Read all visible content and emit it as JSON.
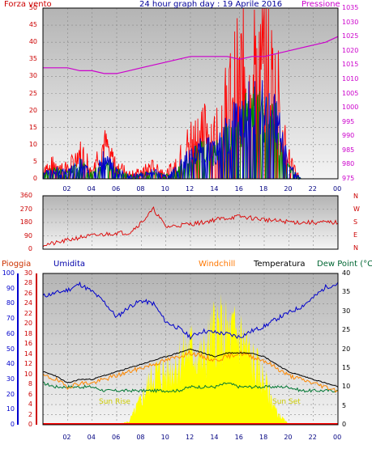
{
  "title": "24 hour graph day : 19 Aprile 2016",
  "header": {
    "left": "Forza vento",
    "right": "Pressione"
  },
  "x_ticks": [
    "02",
    "04",
    "06",
    "08",
    "10",
    "12",
    "14",
    "16",
    "18",
    "20",
    "22",
    "00"
  ],
  "panel1": {
    "y_left_ticks": [
      "0",
      "5",
      "10",
      "15",
      "20",
      "25",
      "30",
      "35",
      "40",
      "45",
      "50"
    ],
    "y_right_ticks": [
      "975",
      "980",
      "985",
      "990",
      "995",
      "1000",
      "1005",
      "1010",
      "1015",
      "1020",
      "1025",
      "1030",
      "1035"
    ]
  },
  "panel2": {
    "y_left_ticks": [
      "0",
      "90",
      "180",
      "270",
      "360"
    ],
    "compass": [
      "N",
      "W",
      "S",
      "E",
      "N"
    ]
  },
  "panel3": {
    "legend": [
      "Pioggia",
      "Umidita",
      "Windchill",
      "Temperatura",
      "Dew Point (°C"
    ],
    "hum_ticks": [
      "0",
      "10",
      "20",
      "30",
      "40",
      "50",
      "60",
      "70",
      "80",
      "90",
      "100"
    ],
    "rain_ticks": [
      "0",
      "2",
      "4",
      "6",
      "8",
      "10",
      "12",
      "14",
      "16",
      "18",
      "20",
      "22",
      "24",
      "26",
      "28",
      "30"
    ],
    "temp_ticks": [
      "0",
      "5",
      "10",
      "15",
      "20",
      "25",
      "30",
      "35",
      "40"
    ],
    "sun_rise": "Sun Rise",
    "sun_set": "Sun Set"
  },
  "colors": {
    "wind_gust": "#ff0000",
    "wind_avg": "#0000cc",
    "wind_min": "#008800",
    "pressure": "#cc00cc",
    "direction": "#dd0000",
    "humidity": "#0000cc",
    "temperature": "#000000",
    "windchill": "#ff8800",
    "dewpoint": "#007733",
    "solar": "#ffff00",
    "rain": "#ff0000"
  },
  "chart_data": [
    {
      "type": "line",
      "title": "24 hour graph day : 19 Aprile 2016",
      "x_hours": [
        0,
        1,
        2,
        3,
        4,
        5,
        6,
        7,
        8,
        9,
        10,
        11,
        12,
        13,
        14,
        15,
        16,
        17,
        18,
        19,
        20,
        21,
        22,
        23,
        24
      ],
      "series": [
        {
          "name": "Forza vento",
          "values": [
            4,
            6,
            4,
            10,
            5,
            13,
            6,
            2,
            3,
            5,
            2,
            7,
            15,
            20,
            17,
            30,
            42,
            46,
            47,
            38,
            8,
            0,
            0,
            0,
            0
          ]
        },
        {
          "name": "Pressione",
          "values": [
            1014,
            1014,
            1014,
            1013,
            1013,
            1012,
            1012,
            1013,
            1014,
            1015,
            1016,
            1017,
            1018,
            1018,
            1018,
            1018,
            1017,
            1018,
            1018,
            1019,
            1020,
            1021,
            1022,
            1023,
            1025
          ]
        }
      ],
      "ylim": [
        0,
        50
      ],
      "y2lim": [
        975,
        1035
      ]
    },
    {
      "type": "line",
      "x_hours": [
        0,
        1,
        2,
        3,
        4,
        5,
        6,
        7,
        8,
        9,
        10,
        11,
        12,
        13,
        14,
        15,
        16,
        17,
        18,
        19,
        20,
        21,
        22,
        23,
        24
      ],
      "series": [
        {
          "name": "direction",
          "values": [
            30,
            40,
            60,
            80,
            90,
            100,
            110,
            110,
            180,
            270,
            150,
            160,
            170,
            180,
            200,
            210,
            220,
            210,
            200,
            190,
            185,
            180,
            180,
            180,
            180
          ]
        }
      ],
      "ylim": [
        0,
        360
      ]
    },
    {
      "type": "line",
      "x_hours": [
        0,
        1,
        2,
        3,
        4,
        5,
        6,
        7,
        8,
        9,
        10,
        11,
        12,
        13,
        14,
        15,
        16,
        17,
        18,
        19,
        20,
        21,
        22,
        23,
        24
      ],
      "series": [
        {
          "name": "Umidita",
          "values": [
            85,
            87,
            89,
            93,
            88,
            81,
            71,
            78,
            82,
            80,
            68,
            64,
            58,
            62,
            61,
            60,
            58,
            62,
            65,
            70,
            74,
            78,
            84,
            91,
            93
          ]
        },
        {
          "name": "Temperatura",
          "values": [
            14,
            13,
            11,
            12,
            12,
            13,
            14,
            15,
            16,
            17,
            18,
            19,
            20,
            19,
            18,
            19,
            19,
            19,
            18,
            16,
            14,
            13,
            12,
            11,
            10
          ]
        },
        {
          "name": "Windchill",
          "values": [
            13,
            12,
            10,
            11,
            11,
            12,
            13,
            14,
            15,
            16,
            17,
            18,
            19,
            18,
            17,
            18,
            19,
            18,
            17,
            15,
            13,
            12,
            11,
            10,
            9
          ]
        },
        {
          "name": "Dew Point (°C",
          "values": [
            11,
            10,
            10,
            10,
            10,
            9,
            9,
            9,
            9,
            9,
            9,
            9,
            10,
            10,
            10,
            11,
            10,
            10,
            10,
            10,
            10,
            9,
            9,
            9,
            9
          ]
        },
        {
          "name": "solar",
          "values": [
            0,
            0,
            0,
            0,
            0,
            0,
            0,
            1,
            8,
            16,
            16,
            20,
            24,
            20,
            30,
            28,
            28,
            20,
            14,
            4,
            0,
            0,
            0,
            0,
            0
          ]
        },
        {
          "name": "Pioggia",
          "values": [
            0,
            0,
            0,
            0,
            0,
            0,
            0,
            0,
            0,
            0,
            0,
            0,
            0,
            0,
            0,
            0,
            0,
            0,
            0,
            0,
            0,
            0,
            0,
            0,
            0
          ]
        }
      ],
      "ylim_humidity": [
        0,
        100
      ],
      "ylim_rain": [
        0,
        30
      ],
      "ylim_temp": [
        0,
        40
      ]
    }
  ]
}
